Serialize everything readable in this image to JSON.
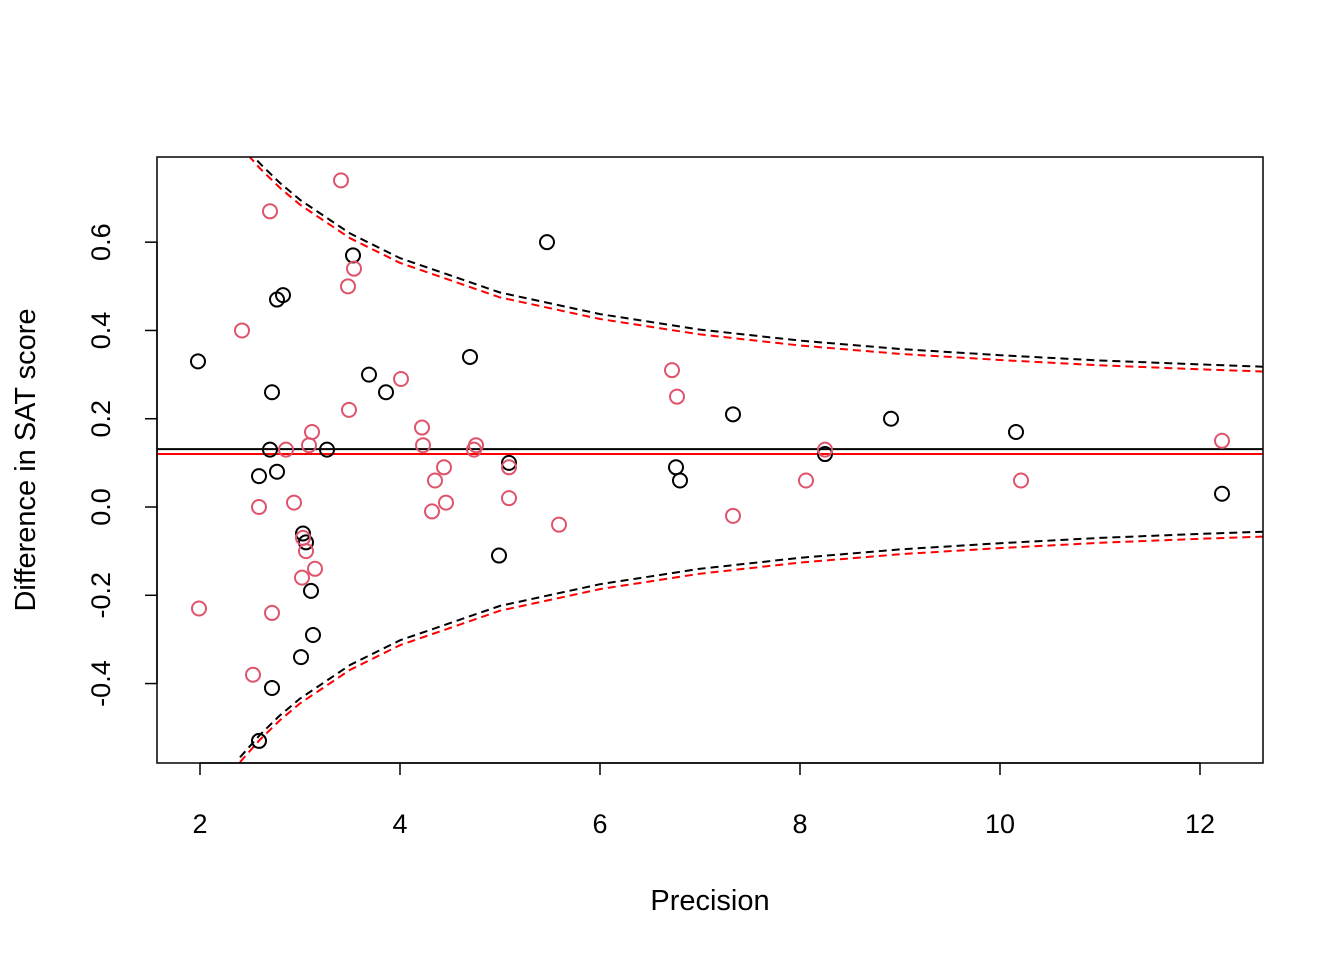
{
  "chart_data": {
    "type": "scatter",
    "title": "",
    "xlabel": "Precision",
    "ylabel": "Difference in SAT score",
    "xlim": [
      1.57,
      12.63
    ],
    "ylim": [
      -0.58,
      0.793
    ],
    "x_ticks": [
      "2",
      "4",
      "6",
      "8",
      "10",
      "12"
    ],
    "y_ticks": [
      "-0.4",
      "-0.2",
      "0.0",
      "0.2",
      "0.4",
      "0.6"
    ],
    "grid": false,
    "legend": "none",
    "series": [
      {
        "color": "#000000",
        "point_color": "#000000",
        "mean_line": 0.131,
        "points": [
          [
            1.98,
            0.33
          ],
          [
            2.72,
            0.26
          ],
          [
            2.7,
            0.13
          ],
          [
            2.59,
            0.07
          ],
          [
            2.77,
            0.08
          ],
          [
            2.77,
            0.47
          ],
          [
            2.83,
            0.48
          ],
          [
            3.53,
            0.57
          ],
          [
            3.69,
            0.3
          ],
          [
            3.86,
            0.26
          ],
          [
            3.27,
            0.13
          ],
          [
            3.03,
            -0.06
          ],
          [
            3.06,
            -0.08
          ],
          [
            3.11,
            -0.19
          ],
          [
            3.13,
            -0.29
          ],
          [
            3.01,
            -0.34
          ],
          [
            2.72,
            -0.41
          ],
          [
            2.59,
            -0.53
          ],
          [
            4.7,
            0.34
          ],
          [
            5.09,
            0.1
          ],
          [
            4.99,
            -0.11
          ],
          [
            5.47,
            0.6
          ],
          [
            6.76,
            0.09
          ],
          [
            6.8,
            0.06
          ],
          [
            7.33,
            0.21
          ],
          [
            8.25,
            0.12
          ],
          [
            8.91,
            0.2
          ],
          [
            10.16,
            0.17
          ],
          [
            12.22,
            0.03
          ]
        ],
        "funnel": {
          "x": [
            2.4,
            2.6,
            2.8,
            3,
            3.5,
            4,
            5,
            6,
            7,
            8,
            9,
            10,
            11,
            12,
            12.63
          ],
          "upper": [
            0.829,
            0.778,
            0.734,
            0.696,
            0.62,
            0.564,
            0.486,
            0.437,
            0.402,
            0.377,
            0.358,
            0.344,
            0.332,
            0.323,
            0.318
          ],
          "lower": [
            -0.567,
            -0.516,
            -0.472,
            -0.434,
            -0.358,
            -0.302,
            -0.224,
            -0.175,
            -0.14,
            -0.115,
            -0.096,
            -0.082,
            -0.07,
            -0.061,
            -0.056
          ]
        }
      },
      {
        "color": "#FF0000",
        "point_color": "#DF536B",
        "mean_line": 0.12,
        "points": [
          [
            3.41,
            0.74
          ],
          [
            2.7,
            0.67
          ],
          [
            3.54,
            0.54
          ],
          [
            3.48,
            0.5
          ],
          [
            2.42,
            0.4
          ],
          [
            4.01,
            0.29
          ],
          [
            3.49,
            0.22
          ],
          [
            4.22,
            0.18
          ],
          [
            3.12,
            0.17
          ],
          [
            4.23,
            0.14
          ],
          [
            3.09,
            0.14
          ],
          [
            2.86,
            0.13
          ],
          [
            4.76,
            0.14
          ],
          [
            4.74,
            0.13
          ],
          [
            4.44,
            0.09
          ],
          [
            4.35,
            0.06
          ],
          [
            4.46,
            0.01
          ],
          [
            4.32,
            -0.01
          ],
          [
            2.94,
            0.01
          ],
          [
            2.59,
            0.0
          ],
          [
            5.09,
            0.09
          ],
          [
            5.09,
            0.02
          ],
          [
            5.59,
            -0.04
          ],
          [
            3.03,
            -0.07
          ],
          [
            3.06,
            -0.1
          ],
          [
            3.15,
            -0.14
          ],
          [
            3.02,
            -0.16
          ],
          [
            1.99,
            -0.23
          ],
          [
            2.72,
            -0.24
          ],
          [
            2.53,
            -0.38
          ],
          [
            6.72,
            0.31
          ],
          [
            6.77,
            0.25
          ],
          [
            7.33,
            -0.02
          ],
          [
            8.06,
            0.06
          ],
          [
            8.25,
            0.13
          ],
          [
            10.21,
            0.06
          ],
          [
            12.22,
            0.15
          ]
        ],
        "funnel": {
          "x": [
            2.4,
            2.6,
            2.8,
            3,
            3.5,
            4,
            5,
            6,
            7,
            8,
            9,
            10,
            11,
            12,
            12.63
          ],
          "upper": [
            0.818,
            0.767,
            0.723,
            0.685,
            0.609,
            0.553,
            0.475,
            0.426,
            0.391,
            0.366,
            0.347,
            0.333,
            0.321,
            0.312,
            0.307
          ],
          "lower": [
            -0.578,
            -0.527,
            -0.483,
            -0.445,
            -0.369,
            -0.313,
            -0.235,
            -0.186,
            -0.151,
            -0.126,
            -0.107,
            -0.093,
            -0.081,
            -0.072,
            -0.067
          ]
        }
      }
    ]
  }
}
